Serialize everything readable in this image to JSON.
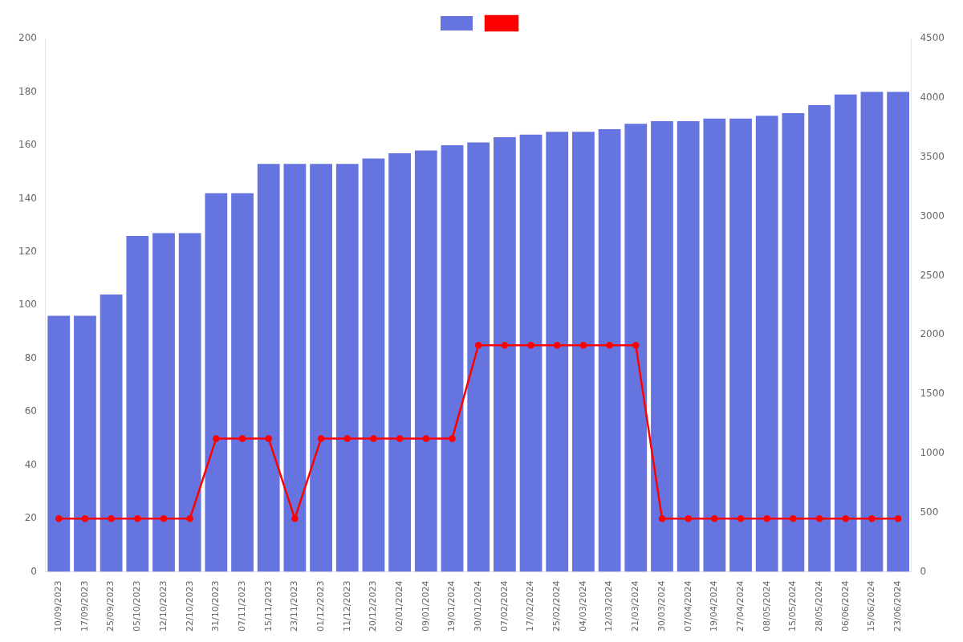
{
  "chart_data": {
    "type": "bar",
    "categories": [
      "10/09/2023",
      "17/09/2023",
      "25/09/2023",
      "05/10/2023",
      "12/10/2023",
      "22/10/2023",
      "31/10/2023",
      "07/11/2023",
      "15/11/2023",
      "23/11/2023",
      "01/12/2023",
      "11/12/2023",
      "20/12/2023",
      "02/01/2024",
      "09/01/2024",
      "19/01/2024",
      "30/01/2024",
      "07/02/2024",
      "17/02/2024",
      "25/02/2024",
      "04/03/2024",
      "12/03/2024",
      "21/03/2024",
      "30/03/2024",
      "07/04/2024",
      "19/04/2024",
      "27/04/2024",
      "08/05/2024",
      "15/05/2024",
      "28/05/2024",
      "06/06/2024",
      "15/06/2024",
      "23/06/2024"
    ],
    "series": [
      {
        "type": "bar",
        "color": "#6674e0",
        "values": [
          96,
          96,
          104,
          126,
          127,
          127,
          142,
          142,
          153,
          153,
          153,
          153,
          155,
          157,
          158,
          160,
          161,
          163,
          164,
          165,
          165,
          166,
          168,
          169,
          169,
          170,
          170,
          171,
          172,
          175,
          179,
          180,
          180
        ]
      },
      {
        "type": "line",
        "color": "#ff0000",
        "marker": "circle",
        "values": [
          20,
          20,
          20,
          20,
          20,
          20,
          50,
          50,
          50,
          20,
          50,
          50,
          50,
          50,
          50,
          50,
          85,
          85,
          85,
          85,
          85,
          85,
          85,
          20,
          20,
          20,
          20,
          20,
          20,
          20,
          20,
          20,
          20
        ]
      }
    ],
    "ylim": [
      0,
      200
    ],
    "yticks": [
      0,
      20,
      40,
      60,
      80,
      100,
      120,
      140,
      160,
      180,
      200
    ],
    "y2lim": [
      0,
      4500
    ],
    "y2ticks": [
      0,
      500,
      1000,
      1500,
      2000,
      2500,
      3000,
      3500,
      4000,
      4500
    ],
    "grid": false,
    "legend": "top"
  }
}
